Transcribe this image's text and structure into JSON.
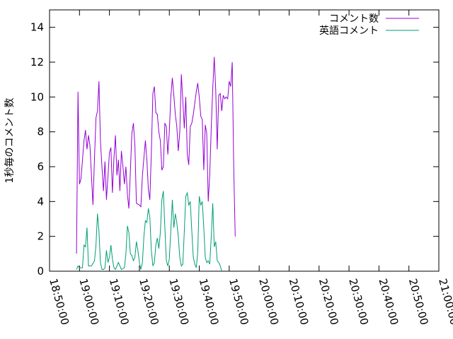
{
  "chart_data": {
    "type": "line",
    "title": "",
    "xlabel": "",
    "ylabel": "1秒毎のコメント数",
    "xlim": [
      "18:50:00",
      "21:00:00"
    ],
    "ylim": [
      0,
      15
    ],
    "xticks": [
      "18:50:00",
      "19:00:00",
      "19:10:00",
      "19:20:00",
      "19:30:00",
      "19:40:00",
      "19:50:00",
      "20:00:00",
      "20:10:00",
      "20:20:00",
      "20:30:00",
      "20:40:00",
      "20:50:00",
      "21:00:00"
    ],
    "yticks": [
      "0",
      "2",
      "4",
      "6",
      "8",
      "10",
      "12",
      "14"
    ],
    "grid": false,
    "legend_position": "top-right",
    "series": [
      {
        "name": "コメント数",
        "color": "#9400d3",
        "points": [
          [
            "18:59:00",
            1.0
          ],
          [
            "18:59:30",
            10.3
          ],
          [
            "19:00:00",
            5.0
          ],
          [
            "19:00:30",
            5.3
          ],
          [
            "19:01:30",
            7.5
          ],
          [
            "19:02:00",
            8.1
          ],
          [
            "19:02:30",
            7.0
          ],
          [
            "19:03:00",
            7.8
          ],
          [
            "19:03:30",
            7.2
          ],
          [
            "19:04:00",
            5.5
          ],
          [
            "19:04:30",
            3.8
          ],
          [
            "19:05:00",
            6.5
          ],
          [
            "19:05:30",
            8.8
          ],
          [
            "19:06:00",
            9.2
          ],
          [
            "19:06:30",
            10.9
          ],
          [
            "19:07:00",
            7.5
          ],
          [
            "19:07:30",
            6.0
          ],
          [
            "19:08:00",
            4.6
          ],
          [
            "19:08:30",
            6.3
          ],
          [
            "19:09:00",
            4.1
          ],
          [
            "19:10:00",
            6.8
          ],
          [
            "19:10:30",
            7.1
          ],
          [
            "19:11:00",
            4.5
          ],
          [
            "19:11:30",
            6.5
          ],
          [
            "19:12:00",
            7.8
          ],
          [
            "19:12:30",
            5.5
          ],
          [
            "19:13:00",
            6.4
          ],
          [
            "19:13:30",
            4.6
          ],
          [
            "19:14:00",
            6.9
          ],
          [
            "19:14:30",
            6.0
          ],
          [
            "19:15:00",
            5.0
          ],
          [
            "19:15:30",
            6.0
          ],
          [
            "19:16:00",
            4.4
          ],
          [
            "19:16:30",
            3.6
          ],
          [
            "19:17:30",
            7.9
          ],
          [
            "19:18:00",
            8.5
          ],
          [
            "19:18:30",
            7.2
          ],
          [
            "19:19:00",
            3.9
          ],
          [
            "19:20:00",
            3.8
          ],
          [
            "19:20:30",
            3.7
          ],
          [
            "19:21:00",
            5.5
          ],
          [
            "19:22:00",
            7.5
          ],
          [
            "19:22:30",
            6.4
          ],
          [
            "19:23:00",
            4.7
          ],
          [
            "19:23:30",
            4.1
          ],
          [
            "19:24:00",
            6.8
          ],
          [
            "19:24:30",
            10.2
          ],
          [
            "19:25:00",
            10.6
          ],
          [
            "19:25:30",
            9.1
          ],
          [
            "19:26:00",
            9.0
          ],
          [
            "19:26:30",
            8.0
          ],
          [
            "19:27:00",
            7.5
          ],
          [
            "19:27:30",
            5.8
          ],
          [
            "19:28:00",
            6.0
          ],
          [
            "19:28:30",
            8.5
          ],
          [
            "19:29:00",
            8.3
          ],
          [
            "19:29:30",
            6.7
          ],
          [
            "19:30:00",
            8.0
          ],
          [
            "19:30:30",
            10.0
          ],
          [
            "19:31:00",
            11.1
          ],
          [
            "19:31:30",
            10.1
          ],
          [
            "19:32:00",
            9.0
          ],
          [
            "19:32:30",
            8.3
          ],
          [
            "19:33:00",
            6.9
          ],
          [
            "19:33:30",
            8.0
          ],
          [
            "19:34:00",
            11.3
          ],
          [
            "19:34:30",
            9.8
          ],
          [
            "19:35:00",
            8.2
          ],
          [
            "19:35:30",
            10.0
          ],
          [
            "19:36:00",
            6.7
          ],
          [
            "19:36:30",
            6.1
          ],
          [
            "19:37:00",
            8.3
          ],
          [
            "19:37:30",
            8.5
          ],
          [
            "19:38:00",
            9.0
          ],
          [
            "19:39:00",
            10.3
          ],
          [
            "19:39:30",
            10.8
          ],
          [
            "19:40:00",
            10.0
          ],
          [
            "19:40:30",
            8.9
          ],
          [
            "19:41:00",
            8.7
          ],
          [
            "19:41:30",
            5.8
          ],
          [
            "19:42:00",
            8.4
          ],
          [
            "19:42:30",
            7.9
          ],
          [
            "19:43:00",
            4.0
          ],
          [
            "19:43:30",
            5.5
          ],
          [
            "19:44:00",
            8.3
          ],
          [
            "19:44:30",
            10.5
          ],
          [
            "19:45:00",
            12.3
          ],
          [
            "19:45:30",
            10.4
          ],
          [
            "19:46:00",
            7.0
          ],
          [
            "19:46:30",
            10.1
          ],
          [
            "19:47:00",
            10.2
          ],
          [
            "19:47:30",
            9.2
          ],
          [
            "19:48:00",
            10.1
          ],
          [
            "19:48:30",
            9.9
          ],
          [
            "19:49:00",
            10.0
          ],
          [
            "19:49:30",
            9.9
          ],
          [
            "19:50:00",
            10.9
          ],
          [
            "19:50:30",
            10.6
          ],
          [
            "19:51:00",
            12.0
          ],
          [
            "19:51:30",
            6.0
          ],
          [
            "19:52:00",
            2.0
          ]
        ]
      },
      {
        "name": "英語コメント",
        "color": "#009e73",
        "points": [
          [
            "18:59:00",
            0.1
          ],
          [
            "18:59:30",
            0.3
          ],
          [
            "19:00:00",
            0.2
          ],
          [
            "19:01:00",
            0.2
          ],
          [
            "19:01:30",
            1.5
          ],
          [
            "19:02:00",
            1.4
          ],
          [
            "19:02:30",
            2.5
          ],
          [
            "19:03:00",
            0.3
          ],
          [
            "19:04:00",
            0.3
          ],
          [
            "19:05:00",
            0.6
          ],
          [
            "19:05:30",
            1.5
          ],
          [
            "19:06:00",
            3.3
          ],
          [
            "19:06:30",
            2.3
          ],
          [
            "19:07:00",
            0.5
          ],
          [
            "19:07:30",
            0.1
          ],
          [
            "19:08:00",
            0.1
          ],
          [
            "19:08:30",
            0.2
          ],
          [
            "19:09:00",
            1.2
          ],
          [
            "19:09:30",
            0.5
          ],
          [
            "19:10:00",
            0.8
          ],
          [
            "19:10:30",
            1.5
          ],
          [
            "19:11:00",
            0.7
          ],
          [
            "19:11:30",
            0.2
          ],
          [
            "19:12:00",
            0.1
          ],
          [
            "19:12:30",
            0.3
          ],
          [
            "19:13:00",
            0.5
          ],
          [
            "19:13:30",
            0.3
          ],
          [
            "19:14:00",
            0.1
          ],
          [
            "19:15:00",
            0.2
          ],
          [
            "19:15:30",
            1.0
          ],
          [
            "19:16:00",
            2.6
          ],
          [
            "19:16:30",
            2.2
          ],
          [
            "19:17:00",
            1.0
          ],
          [
            "19:17:30",
            0.9
          ],
          [
            "19:18:00",
            0.6
          ],
          [
            "19:18:30",
            0.8
          ],
          [
            "19:19:00",
            1.7
          ],
          [
            "19:19:30",
            1.2
          ],
          [
            "19:20:00",
            0.5
          ],
          [
            "19:20:30",
            0.1
          ],
          [
            "19:21:00",
            0.5
          ],
          [
            "19:21:30",
            2.0
          ],
          [
            "19:22:00",
            2.9
          ],
          [
            "19:22:30",
            2.8
          ],
          [
            "19:23:00",
            3.6
          ],
          [
            "19:23:30",
            3.1
          ],
          [
            "19:24:00",
            1.2
          ],
          [
            "19:24:30",
            0.3
          ],
          [
            "19:25:00",
            0.5
          ],
          [
            "19:25:30",
            1.5
          ],
          [
            "19:26:00",
            1.9
          ],
          [
            "19:26:30",
            1.3
          ],
          [
            "19:27:00",
            2.2
          ],
          [
            "19:27:30",
            4.1
          ],
          [
            "19:28:00",
            4.6
          ],
          [
            "19:28:30",
            2.5
          ],
          [
            "19:29:00",
            0.6
          ],
          [
            "19:29:30",
            0.3
          ],
          [
            "19:30:00",
            0.7
          ],
          [
            "19:30:30",
            2.3
          ],
          [
            "19:31:00",
            4.1
          ],
          [
            "19:31:30",
            2.5
          ],
          [
            "19:32:00",
            3.3
          ],
          [
            "19:32:30",
            2.8
          ],
          [
            "19:33:00",
            2.0
          ],
          [
            "19:33:30",
            0.8
          ],
          [
            "19:34:00",
            0.3
          ],
          [
            "19:34:30",
            0.4
          ],
          [
            "19:35:00",
            2.3
          ],
          [
            "19:35:30",
            4.3
          ],
          [
            "19:36:00",
            4.5
          ],
          [
            "19:36:30",
            3.8
          ],
          [
            "19:37:00",
            4.0
          ],
          [
            "19:37:30",
            2.3
          ],
          [
            "19:38:00",
            0.8
          ],
          [
            "19:38:30",
            0.4
          ],
          [
            "19:39:00",
            0.2
          ],
          [
            "19:39:30",
            1.1
          ],
          [
            "19:40:00",
            4.3
          ],
          [
            "19:40:30",
            3.8
          ],
          [
            "19:41:00",
            4.0
          ],
          [
            "19:41:30",
            2.5
          ],
          [
            "19:42:00",
            0.8
          ],
          [
            "19:42:30",
            0.5
          ],
          [
            "19:43:00",
            0.6
          ],
          [
            "19:43:30",
            0.4
          ],
          [
            "19:44:00",
            2.0
          ],
          [
            "19:44:30",
            3.9
          ],
          [
            "19:45:00",
            1.4
          ],
          [
            "19:45:30",
            1.7
          ],
          [
            "19:46:00",
            0.6
          ],
          [
            "19:46:30",
            0.5
          ],
          [
            "19:47:00",
            0.3
          ],
          [
            "19:47:30",
            0.0
          ]
        ]
      }
    ]
  }
}
